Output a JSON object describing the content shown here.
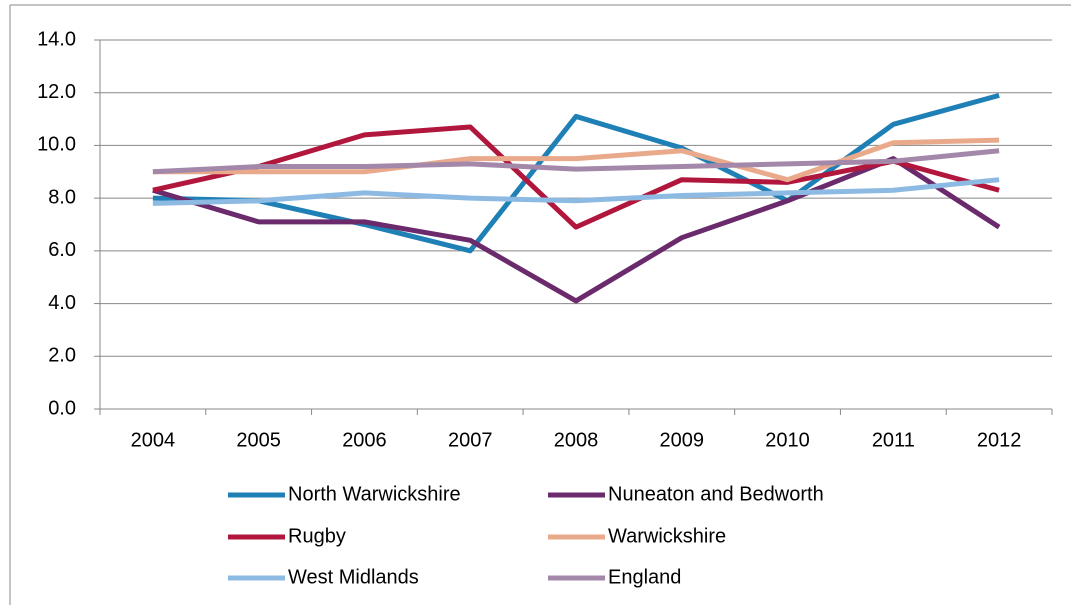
{
  "chart_data": {
    "type": "line",
    "categories": [
      "2004",
      "2005",
      "2006",
      "2007",
      "2008",
      "2009",
      "2010",
      "2011",
      "2012"
    ],
    "series": [
      {
        "name": "North Warwickshire",
        "color": "#1f80b6",
        "values": [
          8.0,
          7.9,
          7.0,
          6.0,
          11.1,
          9.9,
          7.9,
          10.8,
          11.9
        ]
      },
      {
        "name": "Nuneaton and Bedworth",
        "color": "#6a2a6c",
        "values": [
          8.3,
          7.1,
          7.1,
          6.4,
          4.1,
          6.5,
          7.9,
          9.5,
          6.9
        ]
      },
      {
        "name": "Rugby",
        "color": "#b1163d",
        "values": [
          8.3,
          9.2,
          10.4,
          10.7,
          6.9,
          8.7,
          8.6,
          9.4,
          8.3
        ]
      },
      {
        "name": "Warwickshire",
        "color": "#e9aa8b",
        "values": [
          9.0,
          9.0,
          9.0,
          9.5,
          9.5,
          9.8,
          8.7,
          10.1,
          10.2
        ]
      },
      {
        "name": "West Midlands",
        "color": "#8cbae2",
        "values": [
          7.8,
          7.9,
          8.2,
          8.0,
          7.9,
          8.1,
          8.2,
          8.3,
          8.7
        ]
      },
      {
        "name": "England",
        "color": "#a388aa",
        "values": [
          9.0,
          9.2,
          9.2,
          9.3,
          9.1,
          9.2,
          9.3,
          9.4,
          9.8
        ]
      }
    ],
    "ylim": [
      0,
      14
    ],
    "yticks": [
      {
        "value": 0,
        "label": "0.0"
      },
      {
        "value": 2,
        "label": "2.0"
      },
      {
        "value": 4,
        "label": "4.0"
      },
      {
        "value": 6,
        "label": "6.0"
      },
      {
        "value": 8,
        "label": "8.0"
      },
      {
        "value": 10,
        "label": "10.0"
      },
      {
        "value": 12,
        "label": "12.0"
      },
      {
        "value": 14,
        "label": "14.0"
      }
    ],
    "grid": true,
    "legend": "bottom"
  }
}
